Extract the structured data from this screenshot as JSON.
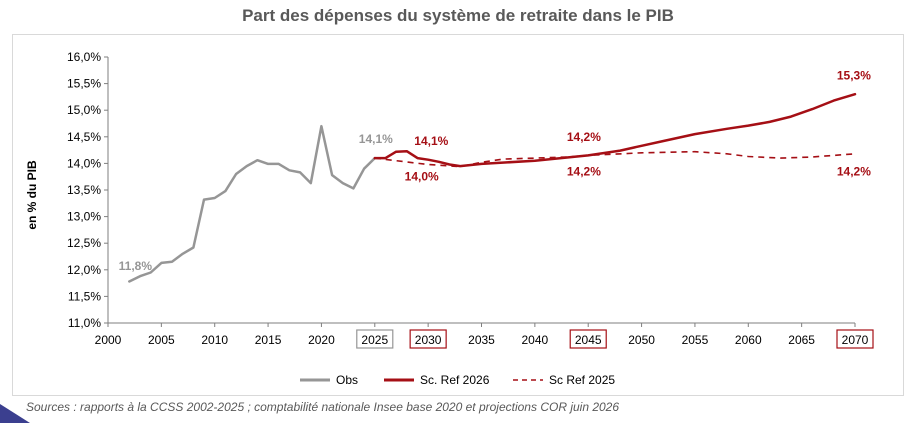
{
  "chart_data": {
    "type": "line",
    "title": "Part des dépenses du système de retraite dans le PIB",
    "ylabel": "en % du PIB",
    "xlabel": "",
    "xlim": [
      2000,
      2070
    ],
    "ylim": [
      11.0,
      16.0
    ],
    "y_step": 0.5,
    "x_ticks": [
      "2000",
      "2005",
      "2010",
      "2015",
      "2020",
      "2025",
      "2030",
      "2035",
      "2040",
      "2045",
      "2050",
      "2055",
      "2060",
      "2065",
      "2070"
    ],
    "y_ticks": [
      "16,0%",
      "15,5%",
      "15,0%",
      "14,5%",
      "14,0%",
      "13,5%",
      "13,0%",
      "12,5%",
      "12,0%",
      "11,5%",
      "11,0%"
    ],
    "boxed_x_ticks": [
      "2025",
      "2030",
      "2045",
      "2070"
    ],
    "grid": "none",
    "legend_position": "bottom",
    "series": [
      {
        "name": "Obs",
        "color": "#969696",
        "style": "solid",
        "x": [
          2002,
          2003,
          2004,
          2005,
          2006,
          2007,
          2008,
          2009,
          2010,
          2011,
          2012,
          2013,
          2014,
          2015,
          2016,
          2017,
          2018,
          2019,
          2020,
          2021,
          2022,
          2023,
          2024,
          2025
        ],
        "values": [
          11.78,
          11.88,
          11.95,
          12.13,
          12.15,
          12.3,
          12.42,
          13.32,
          13.35,
          13.48,
          13.8,
          13.95,
          14.06,
          13.99,
          13.99,
          13.87,
          13.83,
          13.63,
          14.7,
          13.78,
          13.63,
          13.53,
          13.9,
          14.1
        ]
      },
      {
        "name": "Sc. Ref 2026",
        "color": "#a50f15",
        "style": "solid",
        "x": [
          2025,
          2026,
          2027,
          2028,
          2029,
          2030,
          2031,
          2032,
          2033,
          2035,
          2040,
          2045,
          2048,
          2050,
          2052,
          2055,
          2058,
          2060,
          2062,
          2064,
          2066,
          2068,
          2070
        ],
        "values": [
          14.1,
          14.1,
          14.22,
          14.23,
          14.1,
          14.07,
          14.03,
          13.98,
          13.95,
          13.99,
          14.05,
          14.15,
          14.24,
          14.33,
          14.42,
          14.55,
          14.65,
          14.71,
          14.78,
          14.88,
          15.02,
          15.18,
          15.3
        ]
      },
      {
        "name": "Sc Ref 2025",
        "color": "#a50f15",
        "style": "dashed",
        "x": [
          2025,
          2027,
          2030,
          2033,
          2035,
          2037,
          2040,
          2043,
          2045,
          2050,
          2055,
          2058,
          2060,
          2063,
          2066,
          2070
        ],
        "values": [
          14.1,
          14.05,
          13.98,
          13.94,
          14.02,
          14.08,
          14.1,
          14.12,
          14.15,
          14.2,
          14.22,
          14.18,
          14.13,
          14.1,
          14.12,
          14.18
        ]
      }
    ],
    "annotations": [
      {
        "text": "11,8%",
        "x": 2001.0,
        "y": 12.0,
        "color": "#969696",
        "anchor": "start"
      },
      {
        "text": "14,1%",
        "x": 2023.5,
        "y": 14.38,
        "color": "#969696",
        "anchor": "start"
      },
      {
        "text": "14,1%",
        "x": 2028.7,
        "y": 14.35,
        "color": "#a50f15",
        "anchor": "start"
      },
      {
        "text": "14,0%",
        "x": 2027.8,
        "y": 13.68,
        "color": "#a50f15",
        "anchor": "start"
      },
      {
        "text": "14,2%",
        "x": 2043.0,
        "y": 14.42,
        "color": "#a50f15",
        "anchor": "start"
      },
      {
        "text": "14,2%",
        "x": 2043.0,
        "y": 13.77,
        "color": "#a50f15",
        "anchor": "start"
      },
      {
        "text": "15,3%",
        "x": 2068.3,
        "y": 15.58,
        "color": "#a50f15",
        "anchor": "start"
      },
      {
        "text": "14,2%",
        "x": 2068.3,
        "y": 13.77,
        "color": "#a50f15",
        "anchor": "start"
      }
    ]
  },
  "source": "Sources : rapports à la CCSS 2002-2025 ; comptabilité nationale Insee base 2020 et projections COR juin 2026"
}
